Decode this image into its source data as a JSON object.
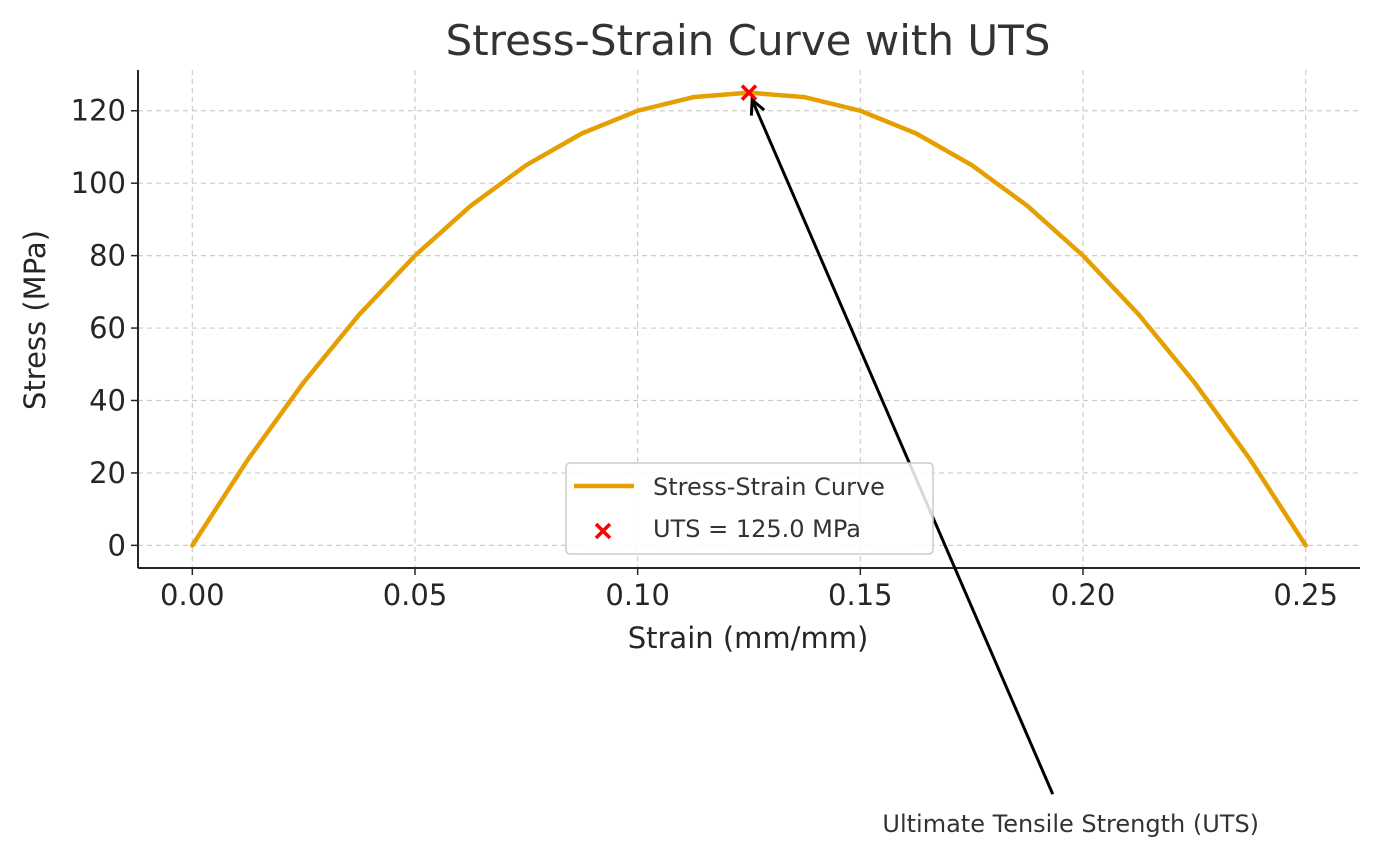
{
  "chart_data": {
    "type": "line",
    "title": "Stress-Strain Curve with UTS",
    "xlabel": "Strain (mm/mm)",
    "ylabel": "Stress (MPa)",
    "xlim": [
      -0.0122,
      0.2622
    ],
    "ylim": [
      -6.25,
      131.25
    ],
    "x_ticks": [
      0.0,
      0.05,
      0.1,
      0.15,
      0.2,
      0.25
    ],
    "x_tick_labels": [
      "0.00",
      "0.05",
      "0.10",
      "0.15",
      "0.20",
      "0.25"
    ],
    "y_ticks": [
      0,
      20,
      40,
      60,
      80,
      100,
      120
    ],
    "y_tick_labels": [
      "0",
      "20",
      "40",
      "60",
      "80",
      "100",
      "120"
    ],
    "grid": true,
    "legend_position": "bottom-center",
    "series": [
      {
        "name": "Stress-Strain Curve",
        "color": "#E69F00",
        "style": "line",
        "x": [
          0.0,
          0.0125,
          0.025,
          0.0375,
          0.05,
          0.0625,
          0.075,
          0.0875,
          0.1,
          0.1125,
          0.125,
          0.1375,
          0.15,
          0.1625,
          0.175,
          0.1875,
          0.2,
          0.2125,
          0.225,
          0.2375,
          0.25
        ],
        "y": [
          0,
          23.75,
          45,
          63.75,
          80,
          93.75,
          105,
          113.75,
          120,
          123.75,
          125,
          123.75,
          120,
          113.75,
          105,
          93.75,
          80,
          63.75,
          45,
          23.75,
          0
        ]
      },
      {
        "name": "UTS = 125.0 MPa",
        "color": "#FF0000",
        "style": "marker-x",
        "x": [
          0.125
        ],
        "y": [
          125.0
        ]
      }
    ],
    "annotations": [
      {
        "text": "Ultimate Tensile Strength (UTS)",
        "point": [
          0.125,
          125.0
        ],
        "text_position": [
          0.195,
          -72.0
        ]
      }
    ]
  }
}
